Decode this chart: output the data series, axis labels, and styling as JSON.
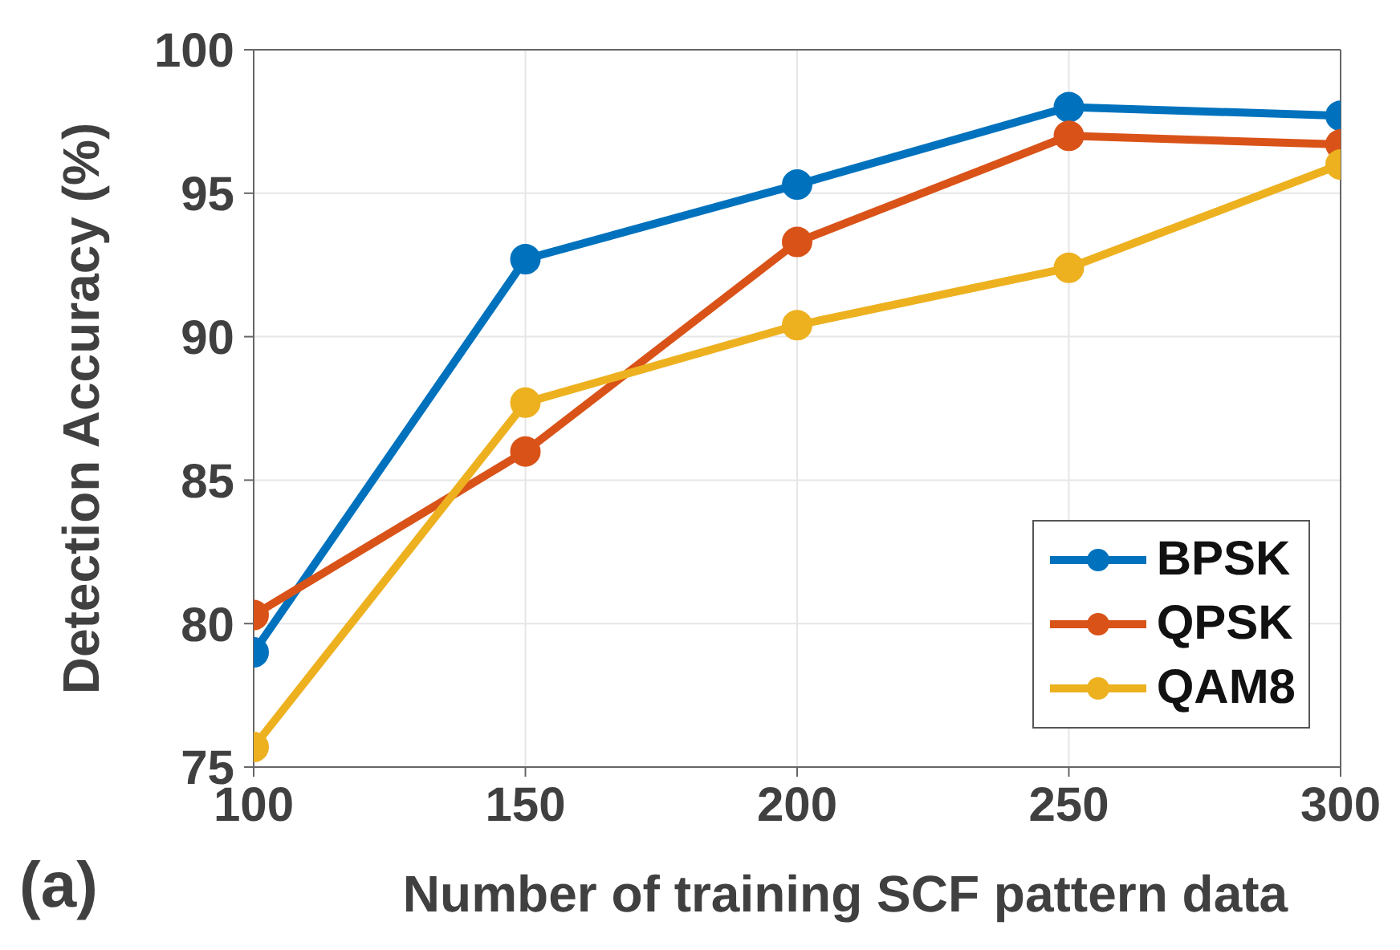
{
  "chart_data": {
    "type": "line",
    "xlabel": "Number of training SCF pattern data",
    "ylabel": "Detection Accuracy (%)",
    "annotations": [
      "(a)"
    ],
    "x": [
      100,
      150,
      200,
      250,
      300
    ],
    "series": [
      {
        "name": "BPSK",
        "color": "#0072bd",
        "values": [
          79.0,
          92.7,
          95.3,
          98.0,
          97.7
        ]
      },
      {
        "name": "QPSK",
        "color": "#d95319",
        "values": [
          80.3,
          86.0,
          93.3,
          97.0,
          96.7
        ]
      },
      {
        "name": "QAM8",
        "color": "#edb120",
        "values": [
          75.7,
          87.7,
          90.4,
          92.4,
          96.0
        ]
      }
    ],
    "xlim": [
      100,
      300
    ],
    "xticks": [
      100,
      150,
      200,
      250,
      300
    ],
    "ylim": [
      75,
      100
    ],
    "yticks": [
      75,
      80,
      85,
      90,
      95,
      100
    ],
    "grid": true,
    "legend": "bottom right",
    "marker": "circle",
    "line_style": "solid"
  }
}
